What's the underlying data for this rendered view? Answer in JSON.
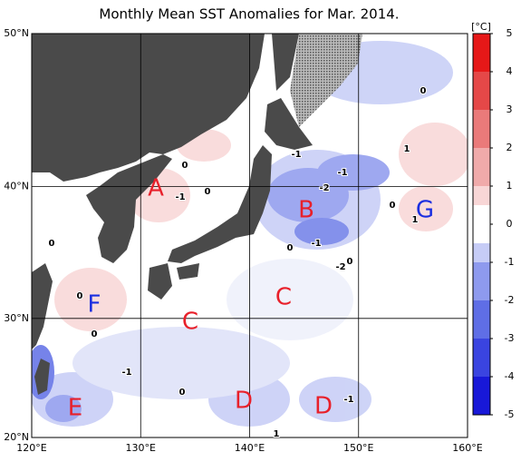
{
  "title": "Monthly Mean SST Anomalies for Mar. 2014.",
  "map": {
    "lonlim": [
      120,
      160
    ],
    "latlim": [
      20,
      50
    ],
    "lon_ticks": [
      {
        "value": 120,
        "label": "120°E"
      },
      {
        "value": 130,
        "label": "130°E"
      },
      {
        "value": 140,
        "label": "140°E"
      },
      {
        "value": 150,
        "label": "150°E"
      },
      {
        "value": 160,
        "label": "160°E"
      }
    ],
    "lat_ticks": [
      {
        "value": 20,
        "label": "20°N"
      },
      {
        "value": 30,
        "label": "30°N"
      },
      {
        "value": 40,
        "label": "40°N"
      },
      {
        "value": 50,
        "label": "50°N"
      }
    ]
  },
  "colorbar": {
    "unit": "[°C]",
    "lim": [
      -5,
      5
    ],
    "ticks": [
      5,
      4,
      3,
      2,
      1,
      0,
      -1,
      -2,
      -3,
      -4,
      -5
    ],
    "edges": [
      -5,
      -4,
      -3,
      -2,
      -1,
      -0.5,
      0.5,
      1,
      2,
      3,
      4,
      5
    ],
    "colors": [
      "#1818d8",
      "#3a44e0",
      "#5f6ee6",
      "#8e9aee",
      "#c6ccf6",
      "#ffffff",
      "#f8d6d6",
      "#f0aaaa",
      "#ea7a7a",
      "#e54848",
      "#e61818"
    ]
  },
  "regions": [
    {
      "label": "A",
      "color": "#e8202a"
    },
    {
      "label": "B",
      "color": "#e8202a"
    },
    {
      "label": "C",
      "color": "#e8202a"
    },
    {
      "label": "C",
      "color": "#e8202a"
    },
    {
      "label": "D",
      "color": "#e8202a"
    },
    {
      "label": "D",
      "color": "#e8202a"
    },
    {
      "label": "E",
      "color": "#e8202a"
    },
    {
      "label": "F",
      "color": "#1a2ee0"
    },
    {
      "label": "G",
      "color": "#1a2ee0"
    }
  ],
  "contour_labels": [
    0,
    -1,
    0,
    -1,
    -2,
    -1,
    0,
    -1,
    -2,
    0,
    0,
    1,
    0,
    1,
    0,
    0,
    0,
    -1,
    0,
    -1,
    1
  ]
}
